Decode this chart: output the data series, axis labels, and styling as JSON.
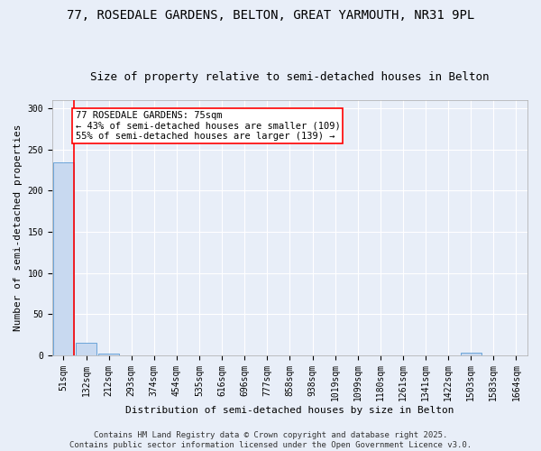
{
  "title": "77, ROSEDALE GARDENS, BELTON, GREAT YARMOUTH, NR31 9PL",
  "subtitle": "Size of property relative to semi-detached houses in Belton",
  "xlabel": "Distribution of semi-detached houses by size in Belton",
  "ylabel": "Number of semi-detached properties",
  "bin_labels": [
    "51sqm",
    "132sqm",
    "212sqm",
    "293sqm",
    "374sqm",
    "454sqm",
    "535sqm",
    "616sqm",
    "696sqm",
    "777sqm",
    "858sqm",
    "938sqm",
    "1019sqm",
    "1099sqm",
    "1180sqm",
    "1261sqm",
    "1341sqm",
    "1422sqm",
    "1503sqm",
    "1583sqm",
    "1664sqm"
  ],
  "bar_heights": [
    235,
    15,
    2,
    0,
    0,
    0,
    0,
    0,
    0,
    0,
    0,
    0,
    0,
    0,
    0,
    0,
    0,
    0,
    3,
    0,
    0
  ],
  "bar_color": "#c8d9f0",
  "bar_edge_color": "#5b9bd5",
  "ylim": [
    0,
    310
  ],
  "yticks": [
    0,
    50,
    100,
    150,
    200,
    250,
    300
  ],
  "annotation_text": "77 ROSEDALE GARDENS: 75sqm\n← 43% of semi-detached houses are smaller (109)\n55% of semi-detached houses are larger (139) →",
  "annotation_box_color": "#ffffff",
  "annotation_box_edge_color": "red",
  "property_line_color": "red",
  "footer_text": "Contains HM Land Registry data © Crown copyright and database right 2025.\nContains public sector information licensed under the Open Government Licence v3.0.",
  "background_color": "#e8eef8",
  "grid_color": "#ffffff",
  "title_fontsize": 10,
  "subtitle_fontsize": 9,
  "axis_label_fontsize": 8,
  "tick_fontsize": 7,
  "annotation_fontsize": 7.5,
  "footer_fontsize": 6.5
}
